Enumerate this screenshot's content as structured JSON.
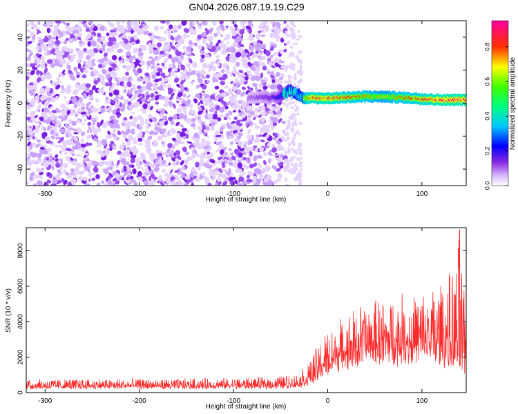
{
  "figure_title": "GN04.2026.087.19.19.C29",
  "chart_data": [
    {
      "type": "heatmap",
      "title": "GN04.2026.087.19.19.C29",
      "xlabel": "Height of straight line (km)",
      "ylabel": "Frequency (Hz)",
      "xlim": [
        -320,
        147
      ],
      "ylim": [
        -50,
        50
      ],
      "xticks": [
        -300,
        -200,
        -100,
        0,
        100
      ],
      "yticks": [
        -40,
        -20,
        0,
        20,
        40
      ],
      "xtick_labels": [
        "-300",
        "-200",
        "-100",
        "0",
        "100"
      ],
      "ytick_labels": [
        "-40",
        "-20",
        "0",
        "20",
        "40"
      ],
      "noise_region_x": [
        -320,
        -45
      ],
      "faint_noise_x": [
        -45,
        -28
      ],
      "signal_trace": {
        "x": [
          -85,
          -70,
          -55,
          -48,
          -42,
          -38,
          -34,
          -30,
          -26,
          -20,
          0,
          40,
          60,
          90,
          120,
          147
        ],
        "freq": [
          3,
          4,
          3,
          5,
          8,
          7,
          6,
          5,
          3,
          3,
          3,
          4,
          4,
          3,
          2,
          2
        ],
        "amplitude": [
          0.12,
          0.15,
          0.2,
          0.3,
          0.35,
          0.4,
          0.45,
          0.5,
          0.7,
          0.9,
          0.92,
          0.8,
          0.75,
          0.85,
          0.95,
          0.95
        ]
      },
      "colorbar": {
        "label": "Normalized spectral amplitude",
        "range": [
          0,
          0.95
        ],
        "ticks": [
          0.0,
          0.2,
          0.4,
          0.6,
          0.8
        ],
        "tick_labels": [
          "0.0",
          "0.2",
          "0.4",
          "0.6",
          "0.8"
        ],
        "colors": [
          "#ffffff",
          "#8a2be2",
          "#0000ff",
          "#00ffff",
          "#00ff00",
          "#ffff00",
          "#ff0000",
          "#ff00ff"
        ]
      }
    },
    {
      "type": "line",
      "xlabel": "Height of straight line (km)",
      "ylabel": "SNR (10 * v/v)",
      "xlim": [
        -320,
        147
      ],
      "ylim": [
        0,
        9300
      ],
      "xticks": [
        -300,
        -200,
        -100,
        0,
        100
      ],
      "yticks": [
        0,
        2000,
        4000,
        6000,
        8000
      ],
      "xtick_labels": [
        "-300",
        "-200",
        "-100",
        "0",
        "100"
      ],
      "ytick_labels": [
        "0",
        "2000",
        "4000",
        "6000",
        "8000"
      ],
      "series": [
        {
          "name": "SNR",
          "color": "#ff2a2a",
          "envelope": {
            "x": [
              -320,
              -250,
              -150,
              -60,
              -30,
              -20,
              -10,
              0,
              20,
              40,
              60,
              80,
              100,
              120,
              135,
              140,
              147
            ],
            "base": [
              300,
              300,
              300,
              320,
              400,
              600,
              1000,
              1500,
              2000,
              2300,
              2400,
              2400,
              2400,
              2200,
              1800,
              1500,
              1200
            ],
            "peak": [
              800,
              800,
              800,
              900,
              1100,
              1800,
              2800,
              3600,
              4500,
              5200,
              5400,
              5600,
              5800,
              6400,
              7000,
              9200,
              4000
            ]
          }
        }
      ]
    }
  ]
}
